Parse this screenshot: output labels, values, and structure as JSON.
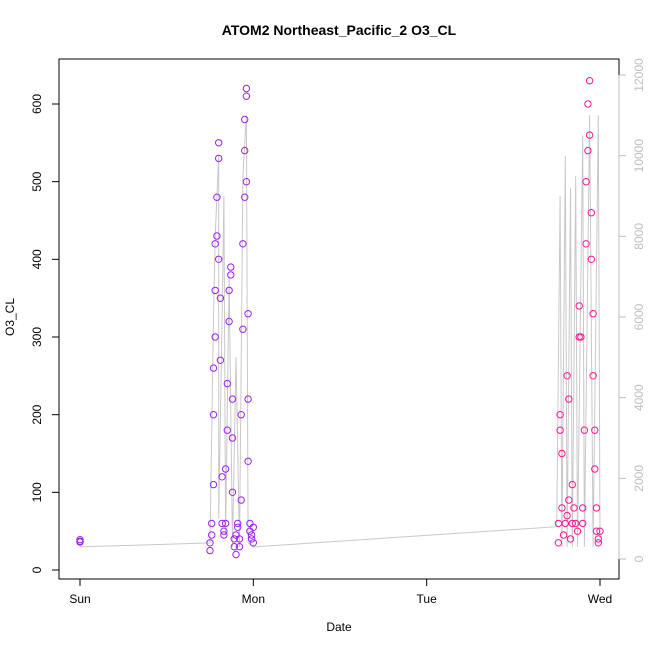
{
  "chart_data": {
    "type": "scatter",
    "title": "ATOM2 Northeast_Pacific_2 O3_CL",
    "xlabel": "Date",
    "ylabel": "O3_CL",
    "x_ticks": [
      "Sun",
      "Mon",
      "Tue",
      "Wed"
    ],
    "x_tick_days": [
      0,
      1,
      2,
      3
    ],
    "xlim": [
      0,
      3
    ],
    "ylim": [
      0,
      650
    ],
    "y_ticks": [
      0,
      100,
      200,
      300,
      400,
      500,
      600
    ],
    "y2lim": [
      0,
      12000
    ],
    "y2_ticks": [
      0,
      2000,
      4000,
      6000,
      8000,
      10000,
      12000
    ],
    "grid": false,
    "legend": "none",
    "series": [
      {
        "name": "O3_CL",
        "color_low": "#a020f0",
        "color_high": "#ff1493",
        "points": [
          [
            0.0,
            37
          ],
          [
            0.0,
            39
          ],
          [
            0.0,
            36
          ],
          [
            0.75,
            25
          ],
          [
            0.75,
            35
          ],
          [
            0.76,
            45
          ],
          [
            0.76,
            60
          ],
          [
            0.77,
            110
          ],
          [
            0.77,
            200
          ],
          [
            0.77,
            260
          ],
          [
            0.78,
            300
          ],
          [
            0.78,
            360
          ],
          [
            0.78,
            420
          ],
          [
            0.79,
            430
          ],
          [
            0.79,
            480
          ],
          [
            0.8,
            530
          ],
          [
            0.8,
            550
          ],
          [
            0.8,
            400
          ],
          [
            0.81,
            350
          ],
          [
            0.81,
            270
          ],
          [
            0.82,
            120
          ],
          [
            0.82,
            60
          ],
          [
            0.83,
            45
          ],
          [
            0.83,
            50
          ],
          [
            0.84,
            60
          ],
          [
            0.84,
            130
          ],
          [
            0.85,
            180
          ],
          [
            0.85,
            240
          ],
          [
            0.86,
            320
          ],
          [
            0.86,
            360
          ],
          [
            0.87,
            390
          ],
          [
            0.87,
            380
          ],
          [
            0.88,
            220
          ],
          [
            0.88,
            170
          ],
          [
            0.88,
            100
          ],
          [
            0.89,
            40
          ],
          [
            0.89,
            30
          ],
          [
            0.9,
            20
          ],
          [
            0.9,
            45
          ],
          [
            0.91,
            55
          ],
          [
            0.91,
            60
          ],
          [
            0.92,
            40
          ],
          [
            0.92,
            30
          ],
          [
            0.93,
            90
          ],
          [
            0.93,
            200
          ],
          [
            0.94,
            310
          ],
          [
            0.94,
            420
          ],
          [
            0.95,
            480
          ],
          [
            0.95,
            540
          ],
          [
            0.95,
            580
          ],
          [
            0.96,
            610
          ],
          [
            0.96,
            620
          ],
          [
            0.96,
            500
          ],
          [
            0.97,
            330
          ],
          [
            0.97,
            220
          ],
          [
            0.97,
            140
          ],
          [
            0.98,
            60
          ],
          [
            0.98,
            50
          ],
          [
            0.99,
            45
          ],
          [
            0.99,
            40
          ],
          [
            1.0,
            35
          ],
          [
            1.0,
            55
          ],
          [
            2.76,
            35
          ],
          [
            2.76,
            60
          ],
          [
            2.77,
            180
          ],
          [
            2.77,
            200
          ],
          [
            2.78,
            150
          ],
          [
            2.78,
            80
          ],
          [
            2.79,
            45
          ],
          [
            2.8,
            60
          ],
          [
            2.81,
            70
          ],
          [
            2.81,
            250
          ],
          [
            2.82,
            220
          ],
          [
            2.82,
            90
          ],
          [
            2.83,
            40
          ],
          [
            2.84,
            60
          ],
          [
            2.84,
            110
          ],
          [
            2.85,
            80
          ],
          [
            2.86,
            60
          ],
          [
            2.87,
            50
          ],
          [
            2.88,
            300
          ],
          [
            2.88,
            340
          ],
          [
            2.89,
            300
          ],
          [
            2.9,
            80
          ],
          [
            2.9,
            60
          ],
          [
            2.91,
            180
          ],
          [
            2.92,
            420
          ],
          [
            2.92,
            500
          ],
          [
            2.93,
            540
          ],
          [
            2.93,
            600
          ],
          [
            2.94,
            630
          ],
          [
            2.94,
            560
          ],
          [
            2.95,
            460
          ],
          [
            2.95,
            400
          ],
          [
            2.96,
            330
          ],
          [
            2.96,
            250
          ],
          [
            2.97,
            180
          ],
          [
            2.97,
            130
          ],
          [
            2.98,
            80
          ],
          [
            2.98,
            50
          ],
          [
            2.99,
            40
          ],
          [
            2.99,
            35
          ],
          [
            3.0,
            50
          ]
        ]
      },
      {
        "name": "line",
        "color": "#c8c8c8",
        "points": [
          [
            0.0,
            300
          ],
          [
            0.0,
            300
          ],
          [
            0.75,
            400
          ],
          [
            0.77,
            6000
          ],
          [
            0.78,
            8000
          ],
          [
            0.8,
            10000
          ],
          [
            0.8,
            1000
          ],
          [
            0.82,
            6000
          ],
          [
            0.83,
            9000
          ],
          [
            0.84,
            600
          ],
          [
            0.86,
            7000
          ],
          [
            0.88,
            300
          ],
          [
            0.9,
            5000
          ],
          [
            0.92,
            300
          ],
          [
            0.94,
            9500
          ],
          [
            0.96,
            11000
          ],
          [
            0.97,
            400
          ],
          [
            1.0,
            300
          ],
          [
            2.75,
            800
          ],
          [
            2.77,
            9000
          ],
          [
            2.78,
            300
          ],
          [
            2.8,
            10000
          ],
          [
            2.81,
            300
          ],
          [
            2.83,
            9200
          ],
          [
            2.84,
            300
          ],
          [
            2.86,
            9500
          ],
          [
            2.87,
            300
          ],
          [
            2.9,
            10500
          ],
          [
            2.91,
            300
          ],
          [
            2.94,
            11000
          ],
          [
            2.96,
            300
          ],
          [
            2.99,
            11000
          ],
          [
            3.0,
            500
          ]
        ]
      }
    ]
  }
}
